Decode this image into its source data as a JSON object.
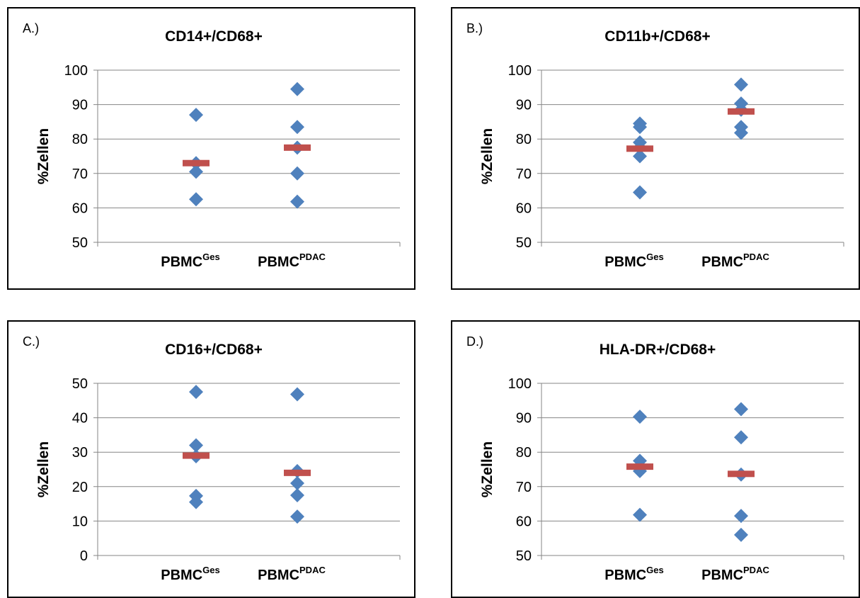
{
  "colors": {
    "point": "#4f81bd",
    "median": "#c0504d",
    "grid": "#868686"
  },
  "chart_data": [
    {
      "type": "scatter",
      "panel_label": "A.)",
      "title": "CD14+/CD68+",
      "ylabel": "%Zellen",
      "ylim": [
        50,
        100
      ],
      "yticks": [
        50,
        60,
        70,
        80,
        90,
        100
      ],
      "grid": true,
      "categories": [
        {
          "base": "PBMC",
          "sup": "Ges"
        },
        {
          "base": "PBMC",
          "sup": "PDAC"
        }
      ],
      "series": [
        {
          "values": [
            87.0,
            73.0,
            70.5,
            62.5
          ],
          "median": 73.0
        },
        {
          "values": [
            94.5,
            83.5,
            77.5,
            70.0,
            61.8
          ],
          "median": 77.5
        }
      ]
    },
    {
      "type": "scatter",
      "panel_label": "B.)",
      "title": "CD11b+/CD68+",
      "ylabel": "%Zellen",
      "ylim": [
        50,
        100
      ],
      "yticks": [
        50,
        60,
        70,
        80,
        90,
        100
      ],
      "grid": true,
      "categories": [
        {
          "base": "PBMC",
          "sup": "Ges"
        },
        {
          "base": "PBMC",
          "sup": "PDAC"
        }
      ],
      "series": [
        {
          "values": [
            84.5,
            83.5,
            79.0,
            77.5,
            75.0,
            64.5
          ],
          "median": 77.2
        },
        {
          "values": [
            95.8,
            90.3,
            88.5,
            83.5,
            81.8
          ],
          "median": 88.0
        }
      ]
    },
    {
      "type": "scatter",
      "panel_label": "C.)",
      "title": "CD16+/CD68+",
      "ylabel": "%Zellen",
      "ylim": [
        0,
        50
      ],
      "yticks": [
        0,
        10,
        20,
        30,
        40,
        50
      ],
      "grid": true,
      "categories": [
        {
          "base": "PBMC",
          "sup": "Ges"
        },
        {
          "base": "PBMC",
          "sup": "PDAC"
        }
      ],
      "series": [
        {
          "values": [
            47.5,
            32.0,
            28.8,
            17.3,
            15.5
          ],
          "median": 29.0
        },
        {
          "values": [
            46.8,
            24.5,
            21.0,
            17.5,
            11.3
          ],
          "median": 24.0
        }
      ]
    },
    {
      "type": "scatter",
      "panel_label": "D.)",
      "title": "HLA-DR+/CD68+",
      "ylabel": "%Zellen",
      "ylim": [
        50,
        100
      ],
      "yticks": [
        50,
        60,
        70,
        80,
        90,
        100
      ],
      "grid": true,
      "categories": [
        {
          "base": "PBMC",
          "sup": "Ges"
        },
        {
          "base": "PBMC",
          "sup": "PDAC"
        }
      ],
      "series": [
        {
          "values": [
            90.3,
            77.5,
            74.5,
            61.8
          ],
          "median": 75.8
        },
        {
          "values": [
            92.5,
            84.3,
            73.5,
            61.5,
            56.0
          ],
          "median": 73.7
        }
      ]
    }
  ]
}
